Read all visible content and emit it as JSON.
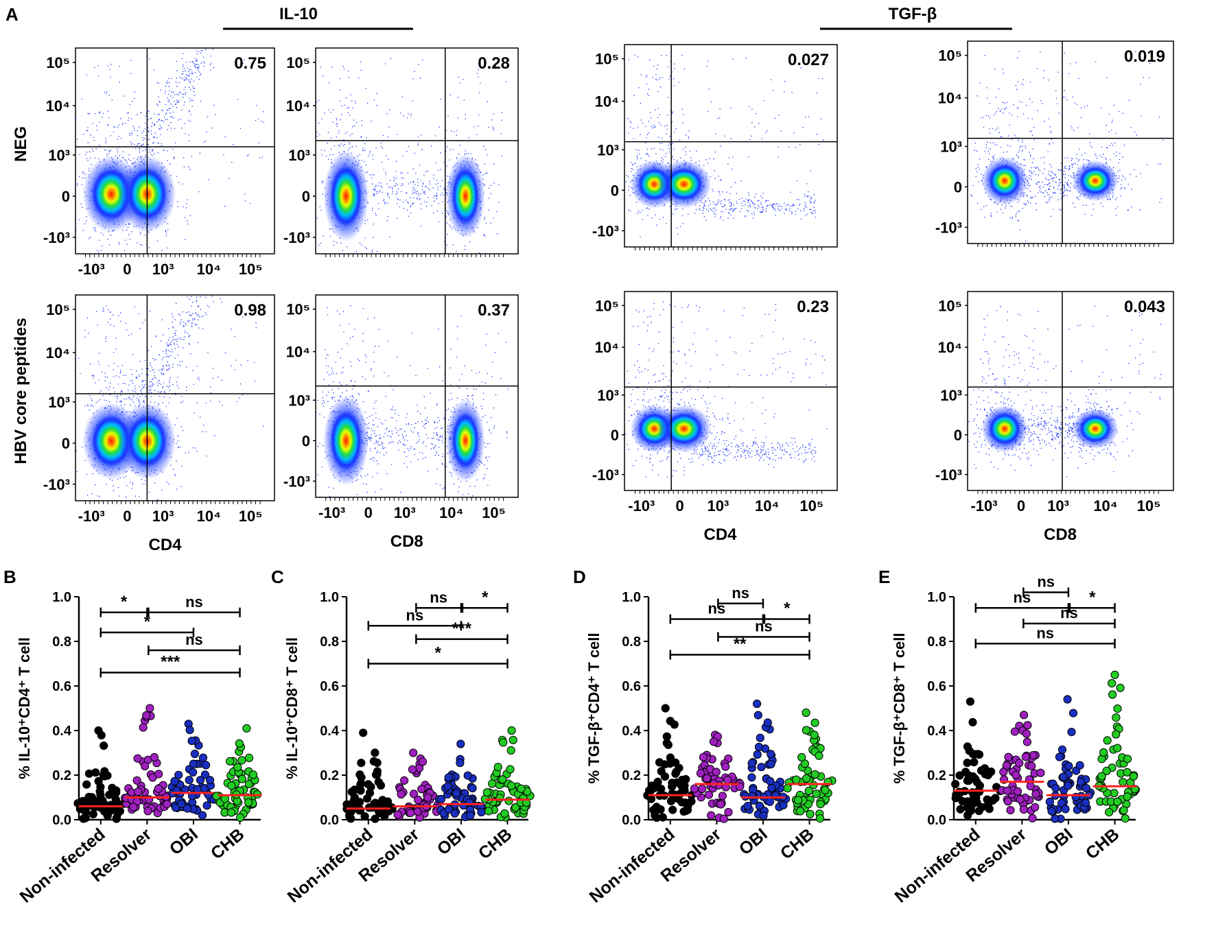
{
  "figure": {
    "panel_labels": [
      "A",
      "B",
      "C",
      "D",
      "E"
    ],
    "cytokine_headers": [
      "IL-10",
      "TGF-β"
    ],
    "row_labels": [
      "NEG",
      "HBV core peptides"
    ]
  },
  "flow": {
    "x_ticks": [
      "-10³",
      "0",
      "10³",
      "10⁴",
      "10⁵"
    ],
    "y_ticks": [
      "10⁵",
      "10⁴",
      "10³",
      "0",
      "-10³"
    ],
    "x_axis_labels": [
      "CD4",
      "CD8",
      "CD4",
      "CD8"
    ],
    "plots": [
      {
        "row": "NEG",
        "cytokine": "IL-10",
        "marker": "CD4",
        "quadrant_value": "0.75"
      },
      {
        "row": "NEG",
        "cytokine": "IL-10",
        "marker": "CD8",
        "quadrant_value": "0.28"
      },
      {
        "row": "NEG",
        "cytokine": "TGF-β",
        "marker": "CD4",
        "quadrant_value": "0.027"
      },
      {
        "row": "NEG",
        "cytokine": "TGF-β",
        "marker": "CD8",
        "quadrant_value": "0.019"
      },
      {
        "row": "HBV core peptides",
        "cytokine": "IL-10",
        "marker": "CD4",
        "quadrant_value": "0.98"
      },
      {
        "row": "HBV core peptides",
        "cytokine": "IL-10",
        "marker": "CD8",
        "quadrant_value": "0.37"
      },
      {
        "row": "HBV core peptides",
        "cytokine": "TGF-β",
        "marker": "CD4",
        "quadrant_value": "0.23"
      },
      {
        "row": "HBV core peptides",
        "cytokine": "TGF-β",
        "marker": "CD8",
        "quadrant_value": "0.043"
      }
    ]
  },
  "chart_data": [
    {
      "type": "scatter",
      "panel": "B",
      "ylabel": "% IL-10⁺CD4⁺ T cell",
      "categories": [
        "Non-infected",
        "Resolver",
        "OBI",
        "CHB"
      ],
      "group_colors": [
        "#000000",
        "#a020c0",
        "#1a2fc0",
        "#22cc22"
      ],
      "ylim": [
        0,
        1.0
      ],
      "yticks": [
        "0.0",
        "0.2",
        "0.4",
        "0.6",
        "0.8",
        "1.0"
      ],
      "medians": [
        0.06,
        0.1,
        0.12,
        0.11
      ],
      "maxima": [
        0.4,
        0.5,
        0.43,
        0.41
      ],
      "comparisons": [
        {
          "from": 0,
          "to": 1,
          "label": "*",
          "y": 0.93
        },
        {
          "from": 1,
          "to": 3,
          "label": "ns",
          "y": 0.93
        },
        {
          "from": 0,
          "to": 2,
          "label": "*",
          "y": 0.84
        },
        {
          "from": 1,
          "to": 3,
          "label": "ns",
          "y": 0.76
        },
        {
          "from": 0,
          "to": 3,
          "label": "***",
          "y": 0.66
        }
      ]
    },
    {
      "type": "scatter",
      "panel": "C",
      "ylabel": "% IL-10⁺CD8⁺ T cell",
      "categories": [
        "Non-infected",
        "Resolver",
        "OBI",
        "CHB"
      ],
      "group_colors": [
        "#000000",
        "#a020c0",
        "#1a2fc0",
        "#22cc22"
      ],
      "ylim": [
        0,
        1.0
      ],
      "yticks": [
        "0.0",
        "0.2",
        "0.4",
        "0.6",
        "0.8",
        "1.0"
      ],
      "medians": [
        0.05,
        0.06,
        0.07,
        0.09
      ],
      "maxima": [
        0.39,
        0.3,
        0.34,
        0.4
      ],
      "comparisons": [
        {
          "from": 1,
          "to": 2,
          "label": "ns",
          "y": 0.95
        },
        {
          "from": 2,
          "to": 3,
          "label": "*",
          "y": 0.95
        },
        {
          "from": 0,
          "to": 2,
          "label": "ns",
          "y": 0.87
        },
        {
          "from": 1,
          "to": 3,
          "label": "***",
          "y": 0.81
        },
        {
          "from": 0,
          "to": 3,
          "label": "*",
          "y": 0.7
        }
      ]
    },
    {
      "type": "scatter",
      "panel": "D",
      "ylabel": "% TGF-β⁺CD4⁺ T cell",
      "categories": [
        "Non-infected",
        "Resolver",
        "OBI",
        "CHB"
      ],
      "group_colors": [
        "#000000",
        "#a020c0",
        "#1a2fc0",
        "#22cc22"
      ],
      "ylim": [
        0,
        1.0
      ],
      "yticks": [
        "0.0",
        "0.2",
        "0.4",
        "0.6",
        "0.8",
        "1.0"
      ],
      "medians": [
        0.11,
        0.16,
        0.1,
        0.16
      ],
      "maxima": [
        0.5,
        0.38,
        0.52,
        0.48
      ],
      "comparisons": [
        {
          "from": 1,
          "to": 2,
          "label": "ns",
          "y": 0.97
        },
        {
          "from": 0,
          "to": 2,
          "label": "ns",
          "y": 0.9
        },
        {
          "from": 2,
          "to": 3,
          "label": "*",
          "y": 0.9
        },
        {
          "from": 1,
          "to": 3,
          "label": "ns",
          "y": 0.82
        },
        {
          "from": 0,
          "to": 3,
          "label": "**",
          "y": 0.74
        }
      ]
    },
    {
      "type": "scatter",
      "panel": "E",
      "ylabel": "% TGF-β⁺CD8⁺ T cell",
      "categories": [
        "Non-infected",
        "Resolver",
        "OBI",
        "CHB"
      ],
      "group_colors": [
        "#000000",
        "#a020c0",
        "#1a2fc0",
        "#22cc22"
      ],
      "ylim": [
        0,
        1.0
      ],
      "yticks": [
        "0.0",
        "0.2",
        "0.4",
        "0.6",
        "0.8",
        "1.0"
      ],
      "medians": [
        0.13,
        0.17,
        0.11,
        0.15
      ],
      "maxima": [
        0.53,
        0.47,
        0.54,
        0.65
      ],
      "comparisons": [
        {
          "from": 1,
          "to": 2,
          "label": "ns",
          "y": 1.02
        },
        {
          "from": 0,
          "to": 2,
          "label": "ns",
          "y": 0.95
        },
        {
          "from": 2,
          "to": 3,
          "label": "*",
          "y": 0.95
        },
        {
          "from": 1,
          "to": 3,
          "label": "ns",
          "y": 0.88
        },
        {
          "from": 0,
          "to": 3,
          "label": "ns",
          "y": 0.79
        }
      ]
    }
  ]
}
